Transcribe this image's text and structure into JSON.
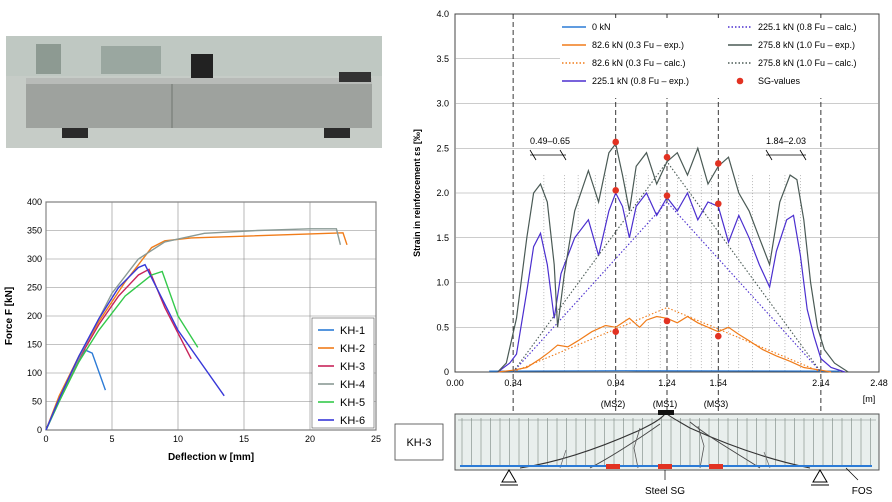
{
  "photo": {
    "alt": "Concrete beam specimen under test"
  },
  "chart_data": [
    {
      "type": "line",
      "xlabel": "Deflection w [mm]",
      "ylabel": "Force F [kN]",
      "xlim": [
        0,
        25
      ],
      "ylim": [
        0,
        400
      ],
      "xticks": [
        0,
        5,
        10,
        15,
        20,
        25
      ],
      "yticks": [
        0,
        50,
        100,
        150,
        200,
        250,
        300,
        350,
        400
      ],
      "grid": true,
      "legend_position": "bottom-right",
      "series": [
        {
          "name": "KH-1",
          "color": "#2c7bd6",
          "points": [
            [
              0,
              0
            ],
            [
              1,
              50
            ],
            [
              2,
              100
            ],
            [
              3,
              140
            ],
            [
              3.5,
              135
            ],
            [
              4.5,
              70
            ]
          ]
        },
        {
          "name": "KH-2",
          "color": "#f07c1a",
          "points": [
            [
              0,
              0
            ],
            [
              1,
              60
            ],
            [
              2.5,
              130
            ],
            [
              4,
              190
            ],
            [
              6,
              260
            ],
            [
              8,
              320
            ],
            [
              9,
              332
            ],
            [
              11,
              337
            ],
            [
              15,
              340
            ],
            [
              20,
              344
            ],
            [
              22.5,
              346
            ],
            [
              22.8,
              325
            ]
          ]
        },
        {
          "name": "KH-3",
          "color": "#c8245a",
          "points": [
            [
              0,
              0
            ],
            [
              1,
              55
            ],
            [
              2.5,
              125
            ],
            [
              4,
              185
            ],
            [
              5.5,
              235
            ],
            [
              7,
              272
            ],
            [
              7.8,
              282
            ],
            [
              9,
              215
            ],
            [
              11,
              125
            ]
          ]
        },
        {
          "name": "KH-4",
          "color": "#8a9a95",
          "points": [
            [
              0,
              0
            ],
            [
              1,
              55
            ],
            [
              3,
              150
            ],
            [
              5,
              240
            ],
            [
              7,
              300
            ],
            [
              9,
              330
            ],
            [
              12,
              345
            ],
            [
              16,
              350
            ],
            [
              20,
              353
            ],
            [
              22,
              353
            ],
            [
              22.3,
              325
            ]
          ]
        },
        {
          "name": "KH-5",
          "color": "#34c94b",
          "points": [
            [
              0,
              0
            ],
            [
              1,
              50
            ],
            [
              2.5,
              120
            ],
            [
              4,
              175
            ],
            [
              6,
              235
            ],
            [
              8,
              272
            ],
            [
              8.8,
              278
            ],
            [
              10,
              200
            ],
            [
              11.5,
              145
            ]
          ]
        },
        {
          "name": "KH-6",
          "color": "#3838d8",
          "points": [
            [
              0,
              0
            ],
            [
              1,
              55
            ],
            [
              2.5,
              130
            ],
            [
              4,
              195
            ],
            [
              5.5,
              250
            ],
            [
              7,
              285
            ],
            [
              7.5,
              290
            ],
            [
              10,
              175
            ],
            [
              13.5,
              60
            ]
          ]
        }
      ]
    },
    {
      "type": "line",
      "ylabel": "Strain in reinforcement εs [‰]",
      "xunit": "[m]",
      "xlim": [
        0,
        2.48
      ],
      "ylim": [
        0,
        4.0
      ],
      "xticks": [
        "0.00",
        "0.34",
        "0.94",
        "1.24",
        "1.54",
        "2.14",
        "2.48"
      ],
      "yticks": [
        "0",
        "0.5",
        "1.0",
        "1.5",
        "2.0",
        "2.5",
        "3.0",
        "3.5",
        "4.0"
      ],
      "grid": true,
      "legend_position": "top",
      "section_labels": [
        "(MS2)",
        "(MS1)",
        "(MS3)"
      ],
      "annotations": [
        "0.49–0.65",
        "1.84–2.03"
      ],
      "series": [
        {
          "name": "0 kN",
          "color": "#2c7bd6",
          "style": "solid",
          "points": [
            [
              0.2,
              0.01
            ],
            [
              1.0,
              0.015
            ],
            [
              2.25,
              0.01
            ]
          ]
        },
        {
          "name": "82.6 kN (0.3 Fu – exp.)",
          "color": "#f07c1a",
          "style": "solid",
          "points": [
            [
              0.25,
              0.0
            ],
            [
              0.34,
              0.02
            ],
            [
              0.42,
              0.05
            ],
            [
              0.5,
              0.15
            ],
            [
              0.55,
              0.22
            ],
            [
              0.6,
              0.3
            ],
            [
              0.66,
              0.28
            ],
            [
              0.72,
              0.35
            ],
            [
              0.8,
              0.45
            ],
            [
              0.88,
              0.52
            ],
            [
              0.94,
              0.5
            ],
            [
              0.98,
              0.55
            ],
            [
              1.02,
              0.6
            ],
            [
              1.08,
              0.5
            ],
            [
              1.12,
              0.58
            ],
            [
              1.18,
              0.62
            ],
            [
              1.24,
              0.6
            ],
            [
              1.3,
              0.55
            ],
            [
              1.36,
              0.62
            ],
            [
              1.42,
              0.55
            ],
            [
              1.48,
              0.5
            ],
            [
              1.54,
              0.45
            ],
            [
              1.6,
              0.5
            ],
            [
              1.66,
              0.42
            ],
            [
              1.72,
              0.35
            ],
            [
              1.8,
              0.25
            ],
            [
              1.88,
              0.18
            ],
            [
              1.96,
              0.12
            ],
            [
              2.04,
              0.05
            ],
            [
              2.14,
              0.02
            ],
            [
              2.2,
              0.0
            ]
          ]
        },
        {
          "name": "82.6 kN (0.3 Fu – calc.)",
          "color": "#f07c1a",
          "style": "dotted",
          "points": [
            [
              0.34,
              0.0
            ],
            [
              1.24,
              0.72
            ],
            [
              2.14,
              0.0
            ]
          ]
        },
        {
          "name": "225.1 kN (0.8 Fu – exp.)",
          "color": "#4b2fcf",
          "style": "solid",
          "points": [
            [
              0.25,
              0.0
            ],
            [
              0.32,
              0.1
            ],
            [
              0.36,
              0.2
            ],
            [
              0.42,
              0.9
            ],
            [
              0.46,
              1.4
            ],
            [
              0.5,
              1.55
            ],
            [
              0.54,
              1.2
            ],
            [
              0.58,
              0.6
            ],
            [
              0.62,
              1.1
            ],
            [
              0.7,
              1.5
            ],
            [
              0.78,
              1.7
            ],
            [
              0.84,
              1.3
            ],
            [
              0.9,
              1.8
            ],
            [
              0.94,
              2.0
            ],
            [
              0.98,
              1.85
            ],
            [
              1.02,
              1.5
            ],
            [
              1.06,
              1.85
            ],
            [
              1.12,
              2.0
            ],
            [
              1.18,
              1.75
            ],
            [
              1.24,
              1.95
            ],
            [
              1.3,
              1.8
            ],
            [
              1.36,
              2.0
            ],
            [
              1.42,
              1.7
            ],
            [
              1.48,
              1.9
            ],
            [
              1.54,
              1.85
            ],
            [
              1.6,
              1.45
            ],
            [
              1.66,
              1.75
            ],
            [
              1.72,
              1.5
            ],
            [
              1.78,
              1.2
            ],
            [
              1.84,
              0.95
            ],
            [
              1.88,
              1.35
            ],
            [
              1.94,
              1.7
            ],
            [
              1.98,
              1.75
            ],
            [
              2.02,
              1.3
            ],
            [
              2.06,
              0.7
            ],
            [
              2.1,
              0.4
            ],
            [
              2.14,
              0.15
            ],
            [
              2.2,
              0.05
            ],
            [
              2.28,
              0.0
            ]
          ]
        },
        {
          "name": "225.1 kN (0.8 Fu – calc.)",
          "color": "#4b2fcf",
          "style": "dotted",
          "points": [
            [
              0.34,
              0.0
            ],
            [
              1.24,
              1.9
            ],
            [
              2.14,
              0.0
            ]
          ]
        },
        {
          "name": "275.8 kN (1.0 Fu – exp.)",
          "color": "#4a5a55",
          "style": "solid",
          "points": [
            [
              0.25,
              0.0
            ],
            [
              0.3,
              0.1
            ],
            [
              0.36,
              0.6
            ],
            [
              0.42,
              1.5
            ],
            [
              0.46,
              2.0
            ],
            [
              0.5,
              2.1
            ],
            [
              0.54,
              1.9
            ],
            [
              0.58,
              1.2
            ],
            [
              0.6,
              0.5
            ],
            [
              0.64,
              1.1
            ],
            [
              0.7,
              1.8
            ],
            [
              0.78,
              2.25
            ],
            [
              0.84,
              1.9
            ],
            [
              0.9,
              2.45
            ],
            [
              0.94,
              2.55
            ],
            [
              0.98,
              2.2
            ],
            [
              1.02,
              1.8
            ],
            [
              1.06,
              2.3
            ],
            [
              1.12,
              2.45
            ],
            [
              1.18,
              2.1
            ],
            [
              1.24,
              2.35
            ],
            [
              1.3,
              2.45
            ],
            [
              1.36,
              2.2
            ],
            [
              1.42,
              2.5
            ],
            [
              1.48,
              2.1
            ],
            [
              1.54,
              2.3
            ],
            [
              1.6,
              2.4
            ],
            [
              1.66,
              2.0
            ],
            [
              1.72,
              1.8
            ],
            [
              1.78,
              1.5
            ],
            [
              1.84,
              1.2
            ],
            [
              1.9,
              1.9
            ],
            [
              1.96,
              2.2
            ],
            [
              2.0,
              2.15
            ],
            [
              2.04,
              1.7
            ],
            [
              2.08,
              1.0
            ],
            [
              2.12,
              0.5
            ],
            [
              2.16,
              0.25
            ],
            [
              2.22,
              0.1
            ],
            [
              2.3,
              0.0
            ]
          ]
        },
        {
          "name": "275.8 kN (1.0 Fu – calc.)",
          "color": "#4a5a55",
          "style": "dotted",
          "points": [
            [
              0.34,
              0.0
            ],
            [
              1.24,
              2.35
            ],
            [
              2.14,
              0.0
            ]
          ]
        },
        {
          "name": "SG-values",
          "color": "#e23222",
          "style": "marker",
          "points": [
            [
              0.94,
              0.45
            ],
            [
              0.94,
              2.03
            ],
            [
              0.94,
              2.57
            ],
            [
              1.24,
              0.57
            ],
            [
              1.24,
              1.97
            ],
            [
              1.24,
              2.4
            ],
            [
              1.54,
              0.4
            ],
            [
              1.54,
              1.88
            ],
            [
              1.54,
              2.33
            ]
          ]
        }
      ]
    }
  ],
  "beam": {
    "label": "KH-3",
    "steel_sg_label": "Steel SG",
    "fos_label": "FOS"
  }
}
